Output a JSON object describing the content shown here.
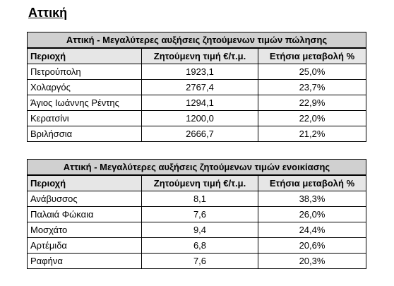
{
  "heading": "Αττική",
  "tables": [
    {
      "title": "Αττική - Μεγαλύτερες αυξήσεις ζητούμενων τιμών πώλησης",
      "header": [
        "Περιοχή",
        "Ζητούμενη τιμή €/τ.μ.",
        "Ετήσια μεταβολή %"
      ],
      "rows": [
        [
          "Πετρούπολη",
          "1923,1",
          "25,0%"
        ],
        [
          "Χολαργός",
          "2767,4",
          "23,7%"
        ],
        [
          "Άγιος Ιωάννης Ρέντης",
          "1294,1",
          "22,9%"
        ],
        [
          "Κερατσίνι",
          "1200,0",
          "22,0%"
        ],
        [
          "Βριλήσσια",
          "2666,7",
          "21,2%"
        ]
      ]
    },
    {
      "title": "Αττική - Μεγαλύτερες αυξήσεις ζητούμενων τιμών ενοικίασης",
      "header": [
        "Περιοχή",
        "Ζητούμενη τιμή €/τ.μ.",
        "Ετήσια μεταβολή %"
      ],
      "rows": [
        [
          "Ανάβυσσος",
          "8,1",
          "38,3%"
        ],
        [
          "Παλαιά Φώκαια",
          "7,6",
          "26,0%"
        ],
        [
          "Μοσχάτο",
          "9,4",
          "24,4%"
        ],
        [
          "Αρτέμιδα",
          "6,8",
          "20,6%"
        ],
        [
          "Ραφήνα",
          "7,6",
          "20,3%"
        ]
      ]
    }
  ]
}
